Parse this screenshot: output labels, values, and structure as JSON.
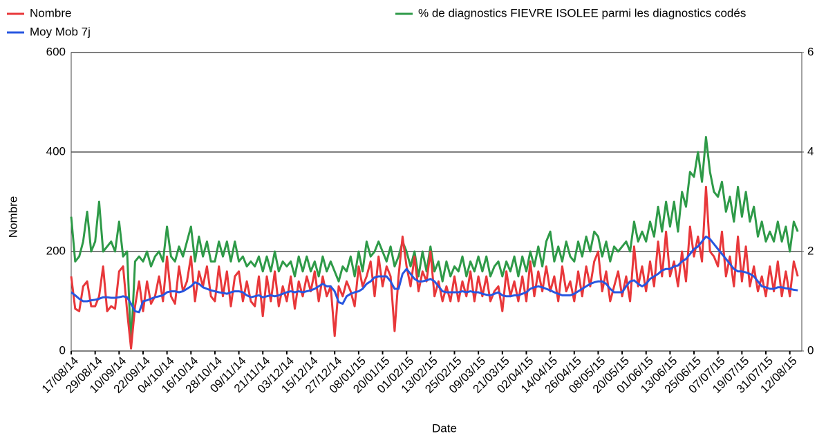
{
  "chart_data": {
    "type": "line",
    "xlabel": "Date",
    "ylabel": "Nombre",
    "categories": [
      "17/08/14",
      null,
      null,
      null,
      null,
      null,
      "29/08/14",
      null,
      null,
      null,
      null,
      null,
      "10/09/14",
      null,
      null,
      null,
      null,
      null,
      "22/09/14",
      null,
      null,
      null,
      null,
      null,
      "04/10/14",
      null,
      null,
      null,
      null,
      null,
      "16/10/14",
      null,
      null,
      null,
      null,
      null,
      "28/10/14",
      null,
      null,
      null,
      null,
      null,
      "09/11/14",
      null,
      null,
      null,
      null,
      null,
      "21/11/14",
      null,
      null,
      null,
      null,
      null,
      "03/12/14",
      null,
      null,
      null,
      null,
      null,
      "15/12/14",
      null,
      null,
      null,
      null,
      null,
      "27/12/14",
      null,
      null,
      null,
      null,
      null,
      "08/01/15",
      null,
      null,
      null,
      null,
      null,
      "20/01/15",
      null,
      null,
      null,
      null,
      null,
      "01/02/15",
      null,
      null,
      null,
      null,
      null,
      "13/02/15",
      null,
      null,
      null,
      null,
      null,
      "25/02/15",
      null,
      null,
      null,
      null,
      null,
      "09/03/15",
      null,
      null,
      null,
      null,
      null,
      "21/03/15",
      null,
      null,
      null,
      null,
      null,
      "02/04/15",
      null,
      null,
      null,
      null,
      null,
      "14/04/15",
      null,
      null,
      null,
      null,
      null,
      "26/04/15",
      null,
      null,
      null,
      null,
      null,
      "08/05/15",
      null,
      null,
      null,
      null,
      null,
      "20/05/15",
      null,
      null,
      null,
      null,
      null,
      "01/06/15",
      null,
      null,
      null,
      null,
      null,
      "13/06/15",
      null,
      null,
      null,
      null,
      null,
      "25/06/15",
      null,
      null,
      null,
      null,
      null,
      "07/07/15",
      null,
      null,
      null,
      null,
      null,
      "19/07/15",
      null,
      null,
      null,
      null,
      null,
      "31/07/15",
      null,
      null,
      null,
      null,
      null,
      "12/08/15",
      null,
      null
    ],
    "series": [
      {
        "name": "Nombre",
        "color": "#e8373a",
        "axis": "y",
        "values": [
          150,
          85,
          80,
          130,
          140,
          90,
          90,
          110,
          170,
          80,
          90,
          85,
          160,
          170,
          80,
          5,
          90,
          140,
          80,
          140,
          95,
          110,
          150,
          100,
          190,
          110,
          95,
          170,
          120,
          140,
          190,
          100,
          160,
          130,
          170,
          110,
          100,
          170,
          110,
          160,
          90,
          150,
          160,
          100,
          140,
          100,
          90,
          150,
          70,
          150,
          100,
          160,
          90,
          130,
          100,
          150,
          85,
          140,
          110,
          150,
          120,
          160,
          100,
          150,
          110,
          130,
          30,
          130,
          110,
          140,
          120,
          90,
          170,
          130,
          150,
          180,
          110,
          190,
          130,
          170,
          150,
          40,
          150,
          230,
          170,
          130,
          190,
          120,
          160,
          140,
          200,
          110,
          140,
          100,
          130,
          100,
          150,
          100,
          140,
          110,
          160,
          100,
          150,
          110,
          150,
          100,
          120,
          130,
          80,
          160,
          110,
          140,
          100,
          150,
          100,
          180,
          110,
          160,
          120,
          170,
          120,
          150,
          100,
          170,
          120,
          140,
          100,
          160,
          110,
          170,
          130,
          180,
          200,
          120,
          160,
          100,
          130,
          160,
          110,
          150,
          100,
          210,
          130,
          170,
          120,
          180,
          130,
          220,
          150,
          240,
          150,
          180,
          130,
          200,
          140,
          250,
          190,
          230,
          180,
          330,
          200,
          190,
          170,
          240,
          150,
          190,
          130,
          230,
          140,
          210,
          130,
          170,
          120,
          150,
          110,
          170,
          120,
          180,
          110,
          160,
          110,
          180,
          150
        ]
      },
      {
        "name": "Moy Mob 7j",
        "color": "#2756e0",
        "axis": "y",
        "values": [
          118,
          112,
          105,
          100,
          100,
          102,
          103,
          105,
          108,
          108,
          107,
          107,
          108,
          110,
          108,
          95,
          80,
          78,
          100,
          102,
          105,
          108,
          110,
          112,
          118,
          120,
          120,
          118,
          120,
          125,
          130,
          138,
          135,
          128,
          125,
          122,
          120,
          118,
          117,
          115,
          118,
          120,
          120,
          118,
          112,
          108,
          110,
          112,
          108,
          110,
          112,
          110,
          112,
          115,
          118,
          120,
          118,
          120,
          118,
          120,
          122,
          125,
          130,
          135,
          130,
          130,
          120,
          98,
          95,
          110,
          115,
          118,
          120,
          125,
          135,
          140,
          148,
          150,
          150,
          150,
          140,
          125,
          125,
          155,
          165,
          155,
          145,
          140,
          140,
          142,
          145,
          140,
          130,
          120,
          118,
          118,
          118,
          118,
          120,
          118,
          120,
          118,
          118,
          115,
          113,
          112,
          115,
          118,
          112,
          110,
          110,
          112,
          112,
          115,
          118,
          125,
          128,
          130,
          128,
          125,
          122,
          118,
          115,
          112,
          112,
          112,
          115,
          120,
          125,
          130,
          135,
          138,
          140,
          140,
          135,
          125,
          118,
          118,
          118,
          130,
          140,
          142,
          135,
          130,
          135,
          145,
          150,
          155,
          162,
          165,
          165,
          170,
          172,
          180,
          185,
          195,
          205,
          210,
          220,
          230,
          225,
          215,
          205,
          195,
          185,
          175,
          165,
          160,
          160,
          158,
          155,
          150,
          140,
          130,
          128,
          125,
          125,
          128,
          128,
          126,
          125,
          123,
          122
        ]
      },
      {
        "name": "% de diagnostics FIEVRE ISOLEE parmi les diagnostics codés",
        "color": "#2e9a48",
        "axis": "y2",
        "values": [
          2.7,
          1.8,
          1.9,
          2.2,
          2.8,
          2.0,
          2.2,
          3.0,
          2.0,
          2.1,
          2.2,
          2.0,
          2.6,
          1.9,
          2.0,
          0.1,
          1.8,
          1.9,
          1.8,
          2.0,
          1.7,
          1.9,
          2.0,
          1.8,
          2.5,
          1.9,
          1.8,
          2.1,
          1.9,
          2.2,
          2.5,
          1.8,
          2.3,
          1.9,
          2.2,
          1.8,
          1.8,
          2.2,
          1.9,
          2.2,
          1.8,
          2.2,
          1.8,
          1.9,
          1.7,
          1.8,
          1.7,
          1.9,
          1.6,
          1.9,
          1.6,
          2.0,
          1.6,
          1.8,
          1.7,
          1.8,
          1.5,
          1.9,
          1.6,
          1.9,
          1.6,
          1.8,
          1.5,
          1.9,
          1.6,
          1.8,
          1.6,
          1.4,
          1.7,
          1.6,
          1.9,
          1.5,
          2.0,
          1.6,
          2.2,
          1.9,
          2.0,
          2.2,
          2.0,
          1.8,
          2.1,
          1.7,
          1.9,
          2.2,
          2.0,
          1.7,
          2.0,
          1.5,
          2.0,
          1.6,
          2.1,
          1.6,
          1.8,
          1.4,
          1.8,
          1.5,
          1.7,
          1.6,
          1.9,
          1.5,
          1.8,
          1.6,
          1.9,
          1.6,
          1.9,
          1.5,
          1.7,
          1.8,
          1.5,
          1.8,
          1.6,
          1.9,
          1.5,
          1.9,
          1.6,
          2.0,
          1.7,
          2.1,
          1.7,
          2.2,
          2.4,
          1.8,
          2.1,
          1.8,
          2.2,
          1.9,
          1.8,
          2.2,
          1.9,
          2.3,
          2.0,
          2.4,
          2.3,
          1.9,
          2.2,
          1.8,
          2.1,
          2.0,
          2.1,
          2.2,
          2.0,
          2.6,
          2.2,
          2.4,
          2.2,
          2.6,
          2.3,
          2.9,
          2.4,
          3.0,
          2.5,
          3.0,
          2.4,
          3.2,
          2.9,
          3.6,
          3.5,
          4.0,
          3.4,
          4.3,
          3.6,
          3.2,
          3.1,
          3.4,
          2.8,
          3.1,
          2.6,
          3.3,
          2.7,
          3.2,
          2.6,
          2.9,
          2.3,
          2.6,
          2.2,
          2.4,
          2.2,
          2.6,
          2.2,
          2.5,
          2.0,
          2.6,
          2.4
        ]
      }
    ],
    "ylim": [
      0,
      600
    ],
    "yticks": [
      0,
      200,
      400,
      600
    ],
    "y2lim": [
      0,
      6
    ],
    "y2ticks": [
      0,
      2,
      4,
      6
    ],
    "grid": true
  }
}
